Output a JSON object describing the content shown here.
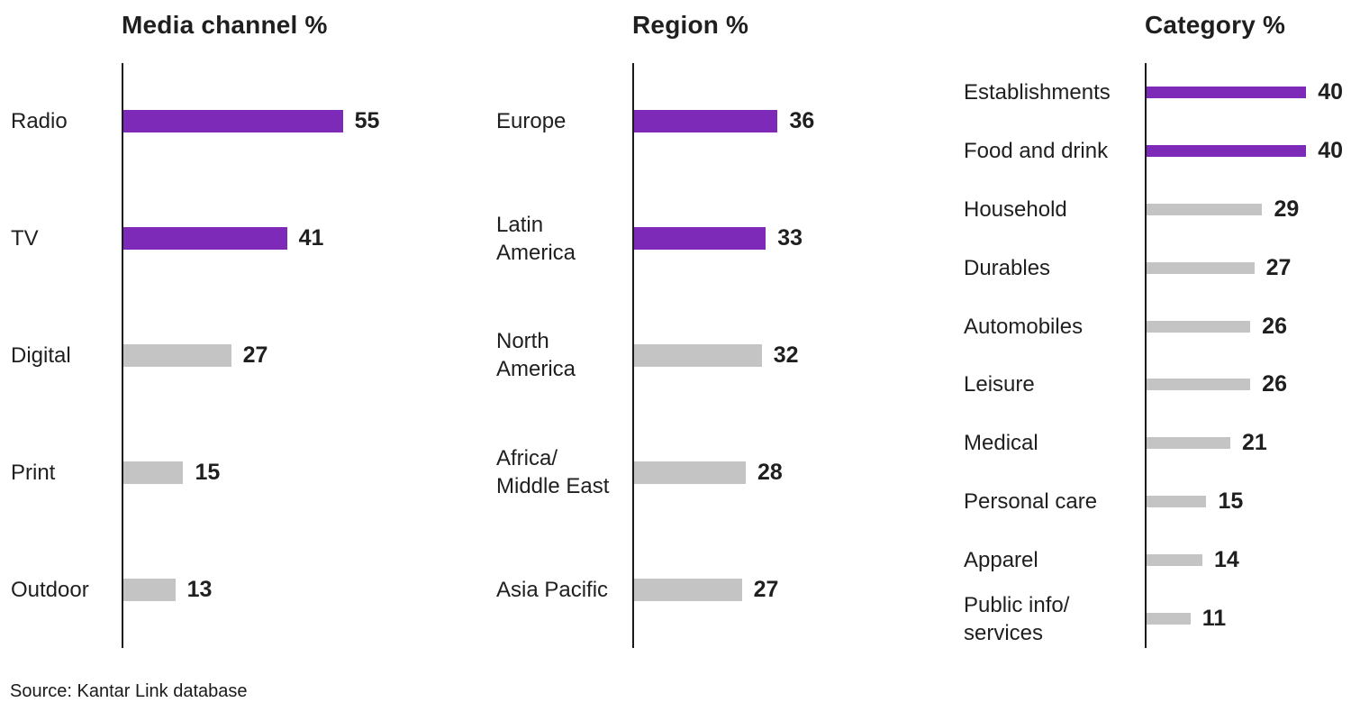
{
  "source": "Source: Kantar Link database",
  "colors": {
    "purple": "#7d2ab8",
    "gray": "#c4c4c4",
    "axis": "#1a1a1a",
    "text": "#1f1f1f",
    "background": "#ffffff"
  },
  "chart_data": [
    {
      "type": "bar",
      "orientation": "horizontal",
      "title": "Media channel %",
      "categories": [
        "Radio",
        "TV",
        "Digital",
        "Print",
        "Outdoor"
      ],
      "values": [
        55,
        41,
        27,
        15,
        13
      ],
      "bar_colors": [
        "purple",
        "purple",
        "gray",
        "gray",
        "gray"
      ],
      "value_labels": true,
      "xlim": [
        0,
        60
      ],
      "grid": false,
      "legend": false
    },
    {
      "type": "bar",
      "orientation": "horizontal",
      "title": "Region %",
      "categories": [
        "Europe",
        "Latin\nAmerica",
        "North\nAmerica",
        "Africa/\nMiddle East",
        "Asia Pacific"
      ],
      "values": [
        36,
        33,
        32,
        28,
        27
      ],
      "bar_colors": [
        "purple",
        "purple",
        "gray",
        "gray",
        "gray"
      ],
      "value_labels": true,
      "xlim": [
        0,
        60
      ],
      "grid": false,
      "legend": false
    },
    {
      "type": "bar",
      "orientation": "horizontal",
      "title": "Category %",
      "categories": [
        "Establishments",
        "Food and drink",
        "Household",
        "Durables",
        "Automobiles",
        "Leisure",
        "Medical",
        "Personal care",
        "Apparel",
        "Public info/\nservices"
      ],
      "values": [
        40,
        40,
        29,
        27,
        26,
        26,
        21,
        15,
        14,
        11
      ],
      "bar_colors": [
        "purple",
        "purple",
        "gray",
        "gray",
        "gray",
        "gray",
        "gray",
        "gray",
        "gray",
        "gray"
      ],
      "value_labels": true,
      "xlim": [
        0,
        60
      ],
      "grid": false,
      "legend": false
    }
  ]
}
